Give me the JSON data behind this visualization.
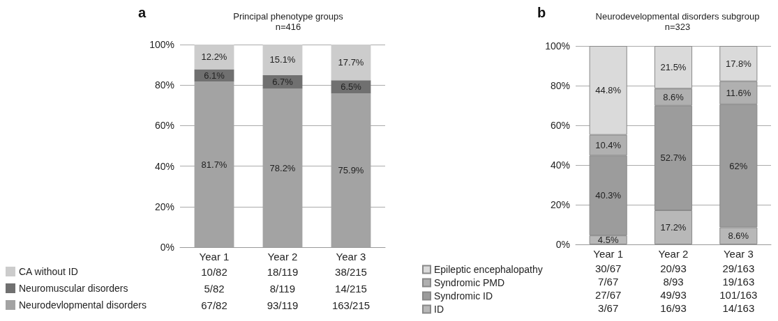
{
  "chart_data": [
    {
      "type": "bar",
      "title": "Principal phenotype groups",
      "subtitle": "n=416",
      "stacked": true,
      "categories": [
        "Year 1",
        "Year 2",
        "Year 3"
      ],
      "series": [
        {
          "name": "Neurodevlopmental disorders",
          "color": "#a3a3a3",
          "values": [
            81.7,
            78.2,
            75.9
          ],
          "value_labels": [
            "81.7%",
            "78.2%",
            "75.9%"
          ]
        },
        {
          "name": "Neuromuscular disorders",
          "color": "#707070",
          "values": [
            6.1,
            6.7,
            6.5
          ],
          "value_labels": [
            "6.1%",
            "6.7%",
            "6.5%"
          ]
        },
        {
          "name": "CA without ID",
          "color": "#cccccc",
          "values": [
            12.2,
            15.1,
            17.7
          ],
          "value_labels": [
            "12.2%",
            "15.1%",
            "17.7%"
          ]
        }
      ],
      "ylim": [
        0,
        100
      ],
      "yticks": [
        {
          "value": 0,
          "label": "0%"
        },
        {
          "value": 20,
          "label": "20%"
        },
        {
          "value": 40,
          "label": "40%"
        },
        {
          "value": 60,
          "label": "60%"
        },
        {
          "value": 80,
          "label": "80%"
        },
        {
          "value": 100,
          "label": "100%"
        }
      ],
      "grid": "y",
      "legend": "bottom left",
      "annotations": [
        "a",
        "10/82",
        "18/119",
        "38/215",
        "5/82",
        "8/119",
        "14/215",
        "67/82",
        "93/119",
        "163/215"
      ]
    },
    {
      "type": "bar",
      "title": "Neurodevelopmental disorders subgroup",
      "subtitle": "n=323",
      "stacked": true,
      "categories": [
        "Year 1",
        "Year 2",
        "Year 3"
      ],
      "series": [
        {
          "name": "ID",
          "color": "#b8b8b8",
          "values": [
            4.5,
            17.2,
            8.6
          ],
          "value_labels": [
            "4.5%",
            "17.2%",
            "8.6%"
          ]
        },
        {
          "name": "Syndromic ID",
          "color": "#9c9c9c",
          "values": [
            40.3,
            52.7,
            62
          ],
          "value_labels": [
            "40.3%",
            "52.7%",
            "62%"
          ]
        },
        {
          "name": "Syndromic PMD",
          "color": "#b0b0b0",
          "values": [
            10.4,
            8.6,
            11.6
          ],
          "value_labels": [
            "10.4%",
            "8.6%",
            "11.6%"
          ]
        },
        {
          "name": "Epileptic encephalopathy",
          "color": "#dadada",
          "values": [
            44.8,
            21.5,
            17.8
          ],
          "value_labels": [
            "44.8%",
            "21.5%",
            "17.8%"
          ]
        }
      ],
      "ylim": [
        0,
        100
      ],
      "yticks": [
        {
          "value": 0,
          "label": "0%"
        },
        {
          "value": 20,
          "label": "20%"
        },
        {
          "value": 40,
          "label": "40%"
        },
        {
          "value": 60,
          "label": "60%"
        },
        {
          "value": 80,
          "label": "80%"
        },
        {
          "value": 100,
          "label": "100%"
        }
      ],
      "grid": "y",
      "legend": "bottom left",
      "annotations": [
        "b",
        "30/67",
        "20/93",
        "29/163",
        "7/67",
        "8/93",
        "19/163",
        "27/67",
        "49/93",
        "101/163",
        "3/67",
        "16/93",
        "14/163"
      ]
    }
  ]
}
